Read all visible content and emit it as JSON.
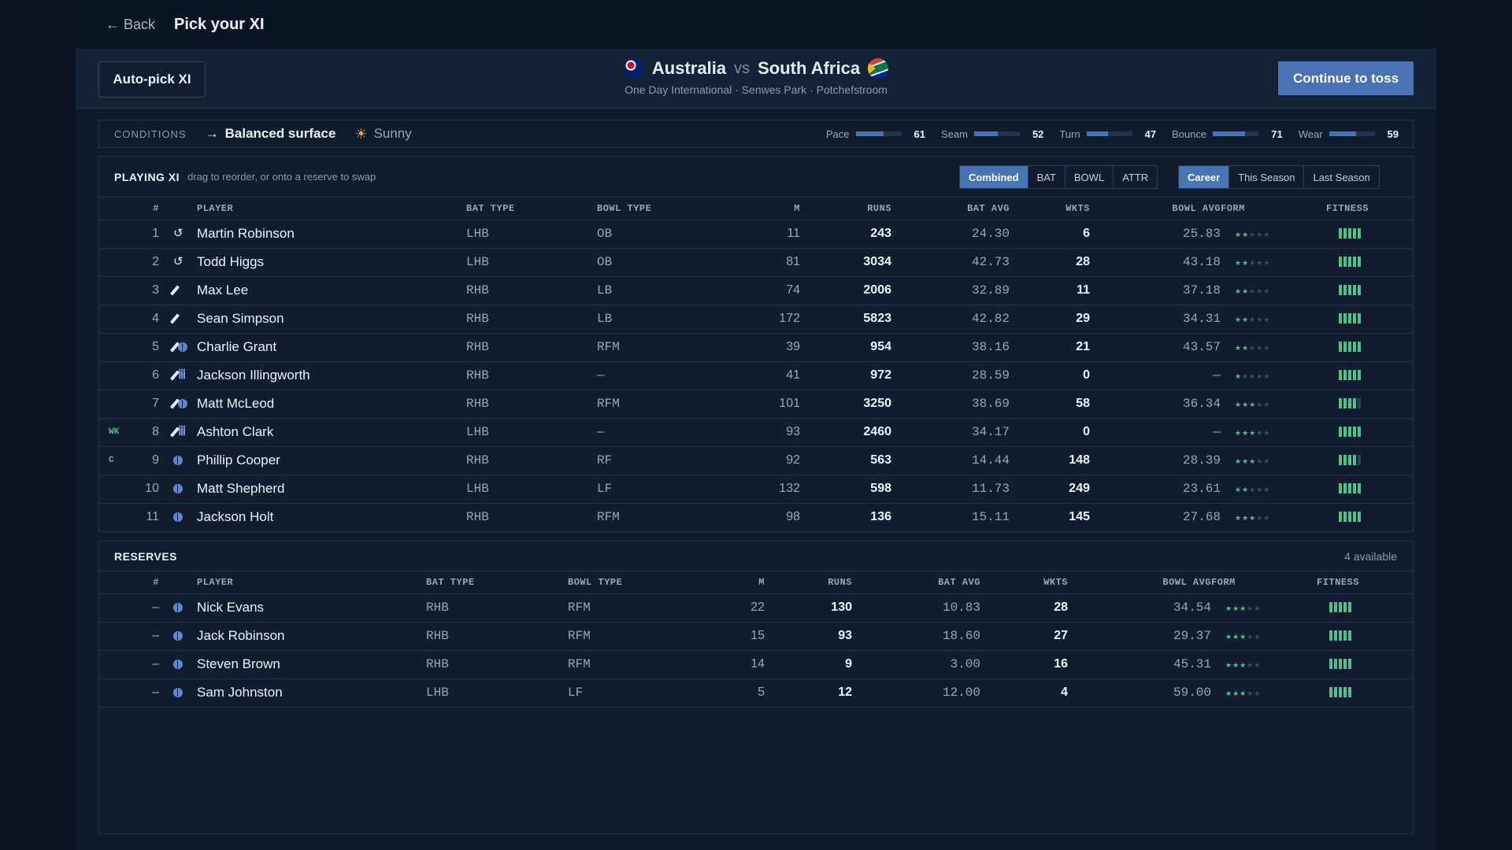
{
  "header": {
    "back_label": "← Back",
    "title": "Pick your XI"
  },
  "match": {
    "auto_pick_label": "Auto-pick XI",
    "home_team": "Australia",
    "vs": "vs",
    "away_team": "South Africa",
    "subtitle": "One Day International · Senwes Park · Potchefstroom",
    "continue_label": "Continue to toss"
  },
  "conditions": {
    "label": "CONDITIONS",
    "surface": "Balanced surface",
    "weather": "Sunny",
    "meters": [
      {
        "name": "Pace",
        "value": 61
      },
      {
        "name": "Seam",
        "value": 52
      },
      {
        "name": "Turn",
        "value": 47
      },
      {
        "name": "Bounce",
        "value": 71
      },
      {
        "name": "Wear",
        "value": 59
      }
    ]
  },
  "xi": {
    "title": "PLAYING XI",
    "hint": "drag to reorder, or onto a reserve to swap",
    "view_tabs": [
      "Combined",
      "BAT",
      "BOWL",
      "ATTR"
    ],
    "view_active": "Combined",
    "period_tabs": [
      "Career",
      "This Season",
      "Last Season"
    ],
    "period_active": "Career",
    "columns": [
      "#",
      "PLAYER",
      "BAT TYPE",
      "BOWL TYPE",
      "M",
      "RUNS",
      "BAT AVG",
      "WKTS",
      "BOWL AVG",
      "FORM",
      "FITNESS"
    ],
    "rows": [
      {
        "tag": "",
        "num": "1",
        "role": "allrounder-icon",
        "name": "Martin Robinson",
        "bat": "LHB",
        "bowl": "OB",
        "m": "11",
        "runs": "243",
        "batavg": "24.30",
        "wkts": "6",
        "bowlavg": "25.83",
        "form": 2,
        "fitness": 5
      },
      {
        "tag": "",
        "num": "2",
        "role": "allrounder-icon",
        "name": "Todd Higgs",
        "bat": "LHB",
        "bowl": "OB",
        "m": "81",
        "runs": "3034",
        "batavg": "42.73",
        "wkts": "28",
        "bowlavg": "43.18",
        "form": 2,
        "fitness": 5
      },
      {
        "tag": "",
        "num": "3",
        "role": "bat-icon",
        "name": "Max Lee",
        "bat": "RHB",
        "bowl": "LB",
        "m": "74",
        "runs": "2006",
        "batavg": "32.89",
        "wkts": "11",
        "bowlavg": "37.18",
        "form": 2,
        "fitness": 5
      },
      {
        "tag": "",
        "num": "4",
        "role": "bat-icon",
        "name": "Sean Simpson",
        "bat": "RHB",
        "bowl": "LB",
        "m": "172",
        "runs": "5823",
        "batavg": "42.82",
        "wkts": "29",
        "bowlavg": "34.31",
        "form": 2,
        "fitness": 5
      },
      {
        "tag": "",
        "num": "5",
        "role": "bat-ball-icon",
        "name": "Charlie Grant",
        "bat": "RHB",
        "bowl": "RFM",
        "m": "39",
        "runs": "954",
        "batavg": "38.16",
        "wkts": "21",
        "bowlavg": "43.57",
        "form": 2,
        "fitness": 5
      },
      {
        "tag": "",
        "num": "6",
        "role": "bat-gloves-icon",
        "name": "Jackson Illingworth",
        "bat": "RHB",
        "bowl": "—",
        "m": "41",
        "runs": "972",
        "batavg": "28.59",
        "wkts": "0",
        "bowlavg": "—",
        "form": 1,
        "fitness": 5
      },
      {
        "tag": "",
        "num": "7",
        "role": "bat-ball-icon",
        "name": "Matt McLeod",
        "bat": "RHB",
        "bowl": "RFM",
        "m": "101",
        "runs": "3250",
        "batavg": "38.69",
        "wkts": "58",
        "bowlavg": "36.34",
        "form": 3,
        "fitness": 4
      },
      {
        "tag": "WK",
        "num": "8",
        "role": "bat-gloves-icon",
        "name": "Ashton Clark",
        "bat": "LHB",
        "bowl": "—",
        "m": "93",
        "runs": "2460",
        "batavg": "34.17",
        "wkts": "0",
        "bowlavg": "—",
        "form": 3,
        "fitness": 5
      },
      {
        "tag": "C",
        "num": "9",
        "role": "ball-icon",
        "name": "Phillip Cooper",
        "bat": "RHB",
        "bowl": "RF",
        "m": "92",
        "runs": "563",
        "batavg": "14.44",
        "wkts": "148",
        "bowlavg": "28.39",
        "form": 3,
        "fitness": 4
      },
      {
        "tag": "",
        "num": "10",
        "role": "ball-icon",
        "name": "Matt Shepherd",
        "bat": "LHB",
        "bowl": "LF",
        "m": "132",
        "runs": "598",
        "batavg": "11.73",
        "wkts": "249",
        "bowlavg": "23.61",
        "form": 2,
        "fitness": 5
      },
      {
        "tag": "",
        "num": "11",
        "role": "ball-icon",
        "name": "Jackson Holt",
        "bat": "RHB",
        "bowl": "RFM",
        "m": "98",
        "runs": "136",
        "batavg": "15.11",
        "wkts": "145",
        "bowlavg": "27.68",
        "form": 3,
        "fitness": 5
      }
    ]
  },
  "reserves": {
    "title": "RESERVES",
    "available": "4 available",
    "columns": [
      "#",
      "PLAYER",
      "BAT TYPE",
      "BOWL TYPE",
      "M",
      "RUNS",
      "BAT AVG",
      "WKTS",
      "BOWL AVG",
      "FORM",
      "FITNESS"
    ],
    "rows": [
      {
        "num": "–",
        "role": "ball-icon",
        "name": "Nick Evans",
        "bat": "RHB",
        "bowl": "RFM",
        "m": "22",
        "runs": "130",
        "batavg": "10.83",
        "wkts": "28",
        "bowlavg": "34.54",
        "form": 3,
        "fitness": 5
      },
      {
        "num": "–",
        "role": "ball-icon",
        "name": "Jack Robinson",
        "bat": "RHB",
        "bowl": "RFM",
        "m": "15",
        "runs": "93",
        "batavg": "18.60",
        "wkts": "27",
        "bowlavg": "29.37",
        "form": 3,
        "fitness": 5
      },
      {
        "num": "–",
        "role": "ball-icon",
        "name": "Steven Brown",
        "bat": "RHB",
        "bowl": "RFM",
        "m": "14",
        "runs": "9",
        "batavg": "3.00",
        "wkts": "16",
        "bowlavg": "45.31",
        "form": 3,
        "fitness": 5
      },
      {
        "num": "–",
        "role": "ball-icon",
        "name": "Sam Johnston",
        "bat": "LHB",
        "bowl": "LF",
        "m": "5",
        "runs": "12",
        "batavg": "12.00",
        "wkts": "4",
        "bowlavg": "59.00",
        "form": 3,
        "fitness": 5
      }
    ]
  },
  "colors": {
    "accent": "#4a73b5",
    "good": "#4cc38a",
    "background": "#0f1a2b"
  }
}
